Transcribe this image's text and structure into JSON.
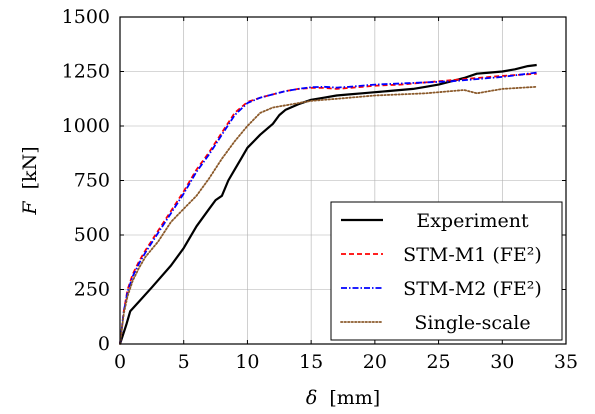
{
  "chart_data": {
    "type": "line",
    "xlabel_symbol": "δ",
    "xlabel_unit": "[mm]",
    "ylabel_symbol": "F",
    "ylabel_unit": "[kN]",
    "xlim": [
      0,
      35
    ],
    "ylim": [
      0,
      1500
    ],
    "x_ticks": [
      0,
      5,
      10,
      15,
      20,
      25,
      30,
      35
    ],
    "y_ticks": [
      0,
      250,
      500,
      750,
      1000,
      1250,
      1500
    ],
    "grid": true,
    "legend_position": "bottom-right",
    "series": [
      {
        "name": "Experiment",
        "color": "#000000",
        "dash": "solid",
        "x": [
          0,
          0.5,
          0.8,
          1.5,
          2.5,
          4,
          5,
          6,
          7,
          7.5,
          8,
          8.5,
          9,
          9.5,
          10,
          11,
          12,
          12.5,
          13,
          14,
          15,
          16,
          17,
          18,
          19,
          20,
          21,
          22,
          23,
          24,
          25,
          26,
          27,
          28,
          29,
          30,
          31,
          32,
          32.7
        ],
        "y": [
          0,
          90,
          150,
          195,
          260,
          360,
          440,
          540,
          620,
          660,
          680,
          750,
          800,
          850,
          900,
          960,
          1010,
          1050,
          1075,
          1100,
          1120,
          1130,
          1140,
          1145,
          1150,
          1155,
          1160,
          1165,
          1170,
          1180,
          1190,
          1205,
          1220,
          1240,
          1245,
          1250,
          1260,
          1275,
          1280
        ]
      },
      {
        "name": "STM-M1 (FE²)",
        "color": "#ff0000",
        "dash": "dashed",
        "x": [
          0,
          0.3,
          0.6,
          1,
          1.5,
          2,
          3,
          4,
          5,
          6,
          7,
          8,
          9,
          10,
          11,
          12,
          13,
          14,
          15,
          16,
          17,
          18,
          20,
          22,
          24,
          26,
          28,
          30,
          32.7
        ],
        "y": [
          0,
          150,
          250,
          320,
          380,
          430,
          520,
          610,
          700,
          800,
          880,
          970,
          1060,
          1110,
          1130,
          1145,
          1160,
          1170,
          1175,
          1175,
          1170,
          1175,
          1185,
          1190,
          1200,
          1210,
          1220,
          1230,
          1240
        ]
      },
      {
        "name": "STM-M2 (FE²)",
        "color": "#0000ff",
        "dash": "dashdot",
        "x": [
          0,
          0.3,
          0.6,
          1,
          1.5,
          2,
          3,
          4,
          5,
          6,
          7,
          8,
          9,
          10,
          11,
          12,
          13,
          14,
          15,
          16,
          17,
          18,
          20,
          22,
          24,
          26,
          28,
          30,
          32.7
        ],
        "y": [
          0,
          150,
          240,
          310,
          370,
          420,
          510,
          600,
          690,
          790,
          870,
          960,
          1050,
          1105,
          1130,
          1145,
          1160,
          1170,
          1178,
          1180,
          1176,
          1180,
          1190,
          1195,
          1200,
          1205,
          1215,
          1225,
          1245
        ]
      },
      {
        "name": "Single-scale",
        "color": "#8b5a2b",
        "dash": "dotted",
        "x": [
          0,
          0.3,
          0.6,
          1,
          1.5,
          2,
          3,
          4,
          5,
          6,
          7,
          8,
          9,
          10,
          11,
          12,
          13,
          14,
          15,
          16,
          17,
          18,
          20,
          22,
          24,
          26,
          27,
          28,
          30,
          32.7
        ],
        "y": [
          0,
          140,
          220,
          290,
          350,
          400,
          470,
          560,
          620,
          680,
          760,
          850,
          930,
          1000,
          1060,
          1085,
          1095,
          1105,
          1115,
          1120,
          1125,
          1130,
          1140,
          1145,
          1150,
          1160,
          1165,
          1150,
          1170,
          1180
        ]
      }
    ]
  }
}
